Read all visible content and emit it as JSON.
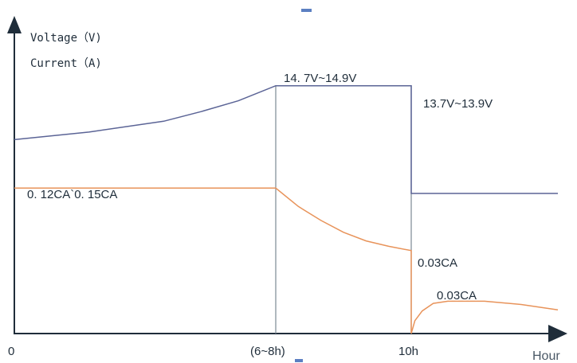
{
  "chart_data": {
    "type": "line",
    "title": "",
    "ylabel_lines": [
      "Voltage（V)",
      "Current（A)"
    ],
    "xlabel": "Hour",
    "x_ticks": [
      "0",
      "(6~8h)",
      "10h"
    ],
    "x": [
      0,
      7,
      10,
      14
    ],
    "xlim": [
      0,
      14
    ],
    "series": [
      {
        "kind": "voltage",
        "x": [
          0,
          2,
          4,
          5,
          6,
          7,
          7,
          10,
          10,
          14
        ],
        "values": [
          14.3,
          14.37,
          14.47,
          14.56,
          14.66,
          14.8,
          14.8,
          14.8,
          13.8,
          13.8
        ],
        "ylim": [
          12.5,
          15.3
        ]
      },
      {
        "kind": "current",
        "x": [
          0,
          7,
          7.5,
          8,
          8.5,
          9,
          9.5,
          10,
          10,
          10.1,
          10.3,
          10.6,
          11,
          12,
          13,
          14
        ],
        "values": [
          0.135,
          0.135,
          0.118,
          0.105,
          0.094,
          0.086,
          0.081,
          0.077,
          0.0,
          0.012,
          0.021,
          0.028,
          0.03,
          0.03,
          0.027,
          0.022
        ],
        "ylim": [
          0,
          0.28
        ]
      }
    ],
    "annotations": [
      {
        "text": "14. 7V~14.9V",
        "series": "voltage",
        "segment": "charge"
      },
      {
        "text": "13.7V~13.9V",
        "series": "voltage",
        "segment": "float"
      },
      {
        "text": "0. 12CA`0. 15CA",
        "series": "current",
        "segment": "constant"
      },
      {
        "text": "0.03CA",
        "series": "current",
        "segment": "end-of-charge"
      },
      {
        "text": "0.03CA",
        "series": "current",
        "segment": "float"
      }
    ],
    "colors": {
      "voltage": "#5b6496",
      "current": "#e8935a",
      "axis": "#1f2d3a",
      "divider": "#7c8894"
    }
  }
}
